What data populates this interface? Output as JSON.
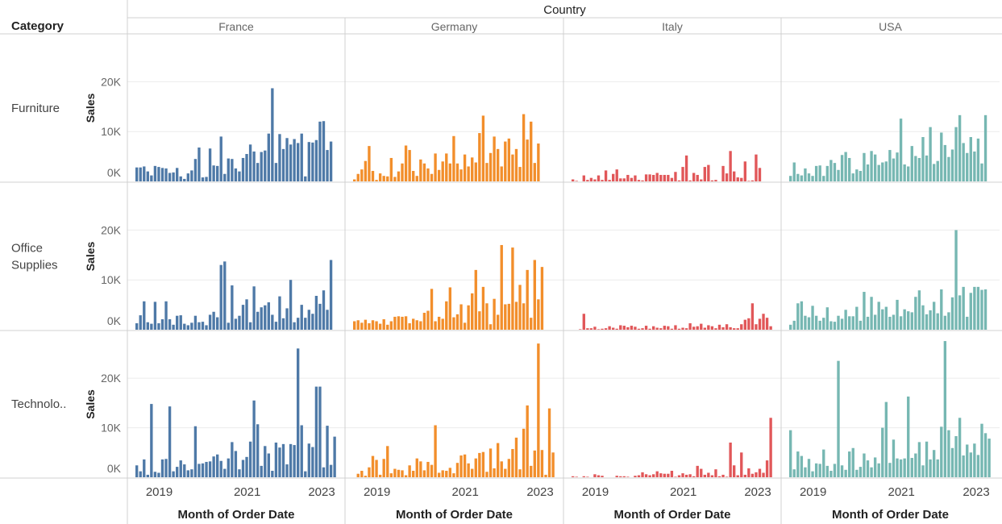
{
  "header": {
    "column_field": "Country",
    "row_field": "Category"
  },
  "chart_data": {
    "type": "bar",
    "columns": [
      "France",
      "Germany",
      "Italy",
      "USA"
    ],
    "rows": [
      "Furniture",
      "Office Supplies",
      "Technolo.."
    ],
    "ylabel": "Sales",
    "xlabel": "Month of Order Date",
    "x_ticks": [
      "2019",
      "2021",
      "2023"
    ],
    "y_ticks": [
      "0K",
      "10K",
      "20K"
    ],
    "x": [
      "2018-07",
      "2018-08",
      "2018-09",
      "2018-10",
      "2018-11",
      "2018-12",
      "2019-01",
      "2019-02",
      "2019-03",
      "2019-04",
      "2019-05",
      "2019-06",
      "2019-07",
      "2019-08",
      "2019-09",
      "2019-10",
      "2019-11",
      "2019-12",
      "2020-01",
      "2020-02",
      "2020-03",
      "2020-04",
      "2020-05",
      "2020-06",
      "2020-07",
      "2020-08",
      "2020-09",
      "2020-10",
      "2020-11",
      "2020-12",
      "2021-01",
      "2021-02",
      "2021-03",
      "2021-04",
      "2021-05",
      "2021-06",
      "2021-07",
      "2021-08",
      "2021-09",
      "2021-10",
      "2021-11",
      "2021-12",
      "2022-01",
      "2022-02",
      "2022-03",
      "2022-04",
      "2022-05",
      "2022-06",
      "2022-07",
      "2022-08",
      "2022-09",
      "2022-10",
      "2022-11",
      "2022-12",
      "2023-01"
    ],
    "colors": {
      "France": "#4e79a7",
      "Germany": "#f28e2b",
      "Italy": "#e15759",
      "USA": "#76b7b2"
    },
    "panels": [
      {
        "row": "Furniture",
        "column": "France",
        "values": [
          2800,
          2800,
          3000,
          2000,
          1200,
          3100,
          2900,
          2700,
          2600,
          1700,
          1800,
          2700,
          1000,
          500,
          1600,
          2200,
          4500,
          6800,
          800,
          900,
          6600,
          3200,
          3100,
          9000,
          1500,
          4600,
          4500,
          2600,
          2000,
          4700,
          5500,
          7400,
          6000,
          3700,
          5900,
          6200,
          9600,
          18700,
          3700,
          9500,
          6500,
          8700,
          7400,
          8500,
          7700,
          9600,
          1000,
          7900,
          7800,
          8300,
          12000,
          12100,
          6300,
          8000,
          0
        ]
      },
      {
        "row": "Furniture",
        "column": "Germany",
        "values": [
          400,
          1500,
          2400,
          4100,
          7100,
          2100,
          300,
          1600,
          1100,
          1000,
          4700,
          900,
          2000,
          3600,
          7200,
          6300,
          2100,
          1100,
          4400,
          3600,
          2600,
          1500,
          5600,
          2300,
          4000,
          5600,
          3600,
          9100,
          3600,
          2400,
          5400,
          3000,
          4800,
          3800,
          9700,
          13200,
          3700,
          5700,
          9000,
          6500,
          3000,
          8000,
          8600,
          5400,
          6500,
          2900,
          13500,
          8400,
          12000,
          3700,
          7600,
          0,
          0,
          0,
          0
        ]
      },
      {
        "row": "Furniture",
        "column": "Italy",
        "values": [
          400,
          100,
          0,
          1200,
          300,
          700,
          400,
          1200,
          300,
          2200,
          300,
          1500,
          2400,
          600,
          600,
          1300,
          700,
          1200,
          300,
          200,
          1400,
          1400,
          1300,
          1700,
          1300,
          1300,
          1300,
          700,
          1900,
          200,
          2900,
          5200,
          200,
          1700,
          1300,
          400,
          2900,
          3300,
          200,
          300,
          0,
          3100,
          1600,
          6100,
          2000,
          800,
          700,
          4000,
          100,
          200,
          5400,
          2700,
          0,
          0,
          0
        ]
      },
      {
        "row": "Furniture",
        "column": "USA",
        "values": [
          1100,
          3800,
          1500,
          1200,
          2600,
          1600,
          1100,
          3100,
          3200,
          1100,
          3100,
          4300,
          3700,
          2300,
          5300,
          5900,
          4700,
          1600,
          2400,
          2100,
          5700,
          3400,
          6100,
          5400,
          3300,
          3800,
          4000,
          6300,
          4600,
          5800,
          12600,
          3400,
          3000,
          7100,
          5100,
          4700,
          8900,
          5200,
          10900,
          3500,
          4100,
          9800,
          7300,
          4900,
          6400,
          10900,
          13300,
          7700,
          5700,
          8900,
          6000,
          8600,
          3600,
          13300,
          0
        ]
      },
      {
        "row": "Office Supplies",
        "column": "France",
        "values": [
          1300,
          2900,
          5700,
          1500,
          1200,
          5600,
          1300,
          2100,
          5700,
          2100,
          1000,
          2800,
          2900,
          1200,
          900,
          1400,
          2800,
          1500,
          1600,
          900,
          3000,
          3600,
          2500,
          13000,
          13700,
          1400,
          8900,
          2200,
          2800,
          5000,
          6100,
          1500,
          8700,
          3600,
          4500,
          4900,
          5500,
          3000,
          1600,
          6700,
          2300,
          4300,
          10000,
          1500,
          2400,
          5000,
          2400,
          4000,
          3200,
          6800,
          5200,
          7900,
          4000,
          14000,
          0
        ]
      },
      {
        "row": "Office Supplies",
        "column": "Germany",
        "values": [
          1700,
          1900,
          1400,
          2000,
          1300,
          1900,
          1700,
          1200,
          2100,
          1000,
          1700,
          2600,
          2700,
          2600,
          2700,
          1300,
          2200,
          1900,
          1700,
          3400,
          3800,
          8200,
          1700,
          2600,
          2200,
          5700,
          8500,
          2500,
          3100,
          5100,
          1400,
          4900,
          7300,
          12000,
          3700,
          8600,
          5300,
          1100,
          6200,
          3000,
          17000,
          5100,
          5200,
          16500,
          5600,
          9000,
          5300,
          12000,
          2400,
          14000,
          6100,
          12600,
          0,
          0,
          0
        ]
      },
      {
        "row": "Office Supplies",
        "column": "Italy",
        "values": [
          0,
          0,
          100,
          3200,
          300,
          300,
          600,
          100,
          200,
          300,
          700,
          400,
          200,
          900,
          800,
          500,
          800,
          600,
          200,
          300,
          800,
          200,
          700,
          400,
          300,
          800,
          700,
          200,
          900,
          200,
          400,
          300,
          1300,
          600,
          700,
          1200,
          400,
          900,
          700,
          300,
          1000,
          500,
          1100,
          500,
          300,
          300,
          1100,
          2000,
          2300,
          5300,
          1100,
          2200,
          3200,
          2400,
          700
        ]
      },
      {
        "row": "Office Supplies",
        "column": "USA",
        "values": [
          1000,
          1800,
          5300,
          5700,
          2800,
          2500,
          4800,
          2800,
          1800,
          2400,
          4500,
          1700,
          1600,
          2800,
          2200,
          4000,
          2700,
          2700,
          4600,
          1800,
          7600,
          2600,
          6600,
          3000,
          5600,
          4100,
          4600,
          2600,
          3000,
          6000,
          2700,
          4100,
          3700,
          3500,
          6600,
          7900,
          4900,
          3100,
          3900,
          5600,
          3300,
          8100,
          2800,
          3500,
          6500,
          20000,
          6900,
          8600,
          2600,
          7400,
          8600,
          8600,
          8000,
          8100,
          0
        ]
      },
      {
        "row": "Technolo..",
        "column": "France",
        "values": [
          2400,
          1200,
          3600,
          500,
          14800,
          1100,
          900,
          3600,
          3700,
          14300,
          1200,
          2100,
          3400,
          2600,
          1400,
          1600,
          10300,
          2700,
          2800,
          3100,
          3200,
          4200,
          4600,
          3300,
          1700,
          3800,
          7100,
          5300,
          1600,
          3500,
          4100,
          7200,
          15500,
          10700,
          2300,
          6300,
          4800,
          1300,
          7000,
          6000,
          6700,
          2600,
          6700,
          6500,
          26000,
          10500,
          1200,
          6800,
          6100,
          18300,
          18300,
          2000,
          10400,
          2500,
          8200
        ]
      },
      {
        "row": "Technolo..",
        "column": "Germany",
        "values": [
          0,
          700,
          1300,
          300,
          2000,
          4300,
          3500,
          500,
          3700,
          6300,
          800,
          1700,
          1500,
          1400,
          400,
          2400,
          1300,
          3800,
          3200,
          1400,
          3100,
          2500,
          10500,
          900,
          1400,
          1300,
          1900,
          800,
          2900,
          4400,
          4600,
          2800,
          1700,
          3800,
          4900,
          5100,
          1100,
          5800,
          1800,
          6900,
          3200,
          1700,
          3700,
          5700,
          8000,
          1600,
          9800,
          14500,
          2300,
          5400,
          27000,
          5500,
          500,
          13900,
          5000
        ]
      },
      {
        "row": "Technolo..",
        "column": "Italy",
        "values": [
          200,
          100,
          0,
          200,
          100,
          0,
          600,
          400,
          300,
          0,
          0,
          0,
          300,
          200,
          200,
          100,
          0,
          300,
          400,
          1000,
          600,
          400,
          600,
          1200,
          800,
          700,
          700,
          1300,
          100,
          400,
          800,
          500,
          600,
          200,
          2300,
          1700,
          500,
          900,
          400,
          1600,
          200,
          500,
          100,
          7000,
          2400,
          400,
          5000,
          500,
          1800,
          700,
          1000,
          1700,
          900,
          3400,
          12000
        ]
      },
      {
        "row": "Technolo..",
        "column": "USA",
        "values": [
          9500,
          1600,
          5200,
          4300,
          2000,
          3700,
          1200,
          2800,
          2700,
          5600,
          2300,
          1300,
          2700,
          23500,
          2400,
          1500,
          5200,
          5900,
          1500,
          2100,
          4800,
          3400,
          2000,
          4000,
          2800,
          10000,
          15200,
          2900,
          7600,
          3800,
          3600,
          3800,
          16300,
          3900,
          4800,
          7100,
          2400,
          7200,
          3600,
          5500,
          3600,
          10200,
          27500,
          9500,
          5900,
          8300,
          12000,
          4400,
          6600,
          5000,
          6800,
          4500,
          10800,
          8900,
          7800
        ]
      }
    ]
  }
}
